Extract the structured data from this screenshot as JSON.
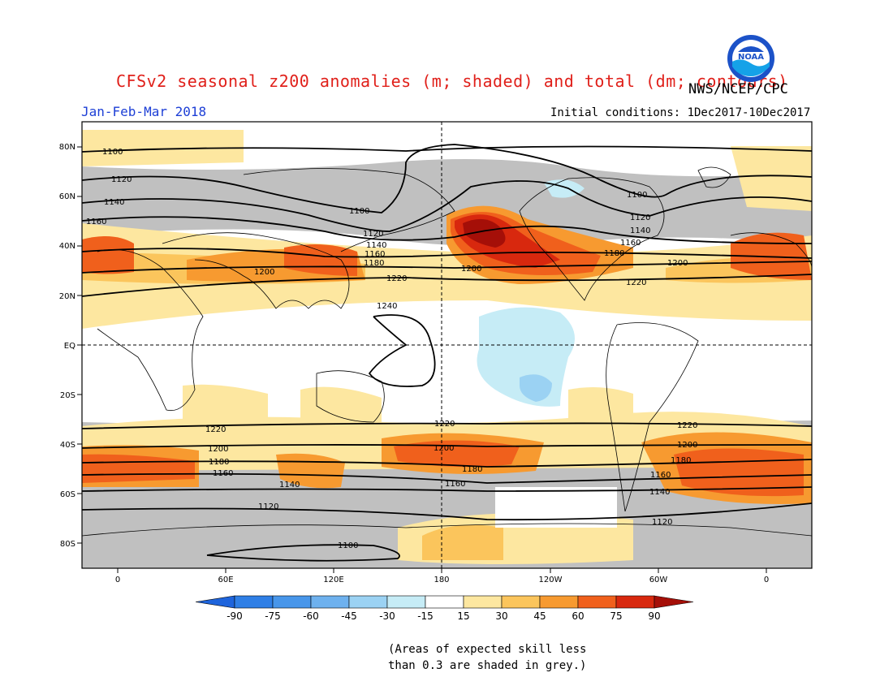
{
  "title": "CFSv2 seasonal z200 anomalies (m; shaded) and total (dm; contours)",
  "agency": "NWS/NCEP/CPC",
  "logo_text": "NOAA",
  "season": "Jan-Feb-Mar 2018",
  "initial_conditions": "Initial conditions: 1Dec2017-10Dec2017",
  "note_line1": "(Areas of expected skill less",
  "note_line2": "than 0.3 are shaded in grey.)",
  "lat_labels": [
    "80N",
    "60N",
    "40N",
    "20N",
    "EQ",
    "20S",
    "40S",
    "60S",
    "80S"
  ],
  "lon_labels": [
    "0",
    "60E",
    "120E",
    "180",
    "120W",
    "60W",
    "0"
  ],
  "colorbar": {
    "ticks": [
      "-90",
      "-75",
      "-60",
      "-45",
      "-30",
      "-15",
      "15",
      "30",
      "45",
      "60",
      "75",
      "90"
    ],
    "colors": [
      "#1e64dc",
      "#2f7fe6",
      "#4896ea",
      "#6eb1ee",
      "#9bd2f3",
      "#c6ecf6",
      "#ffffff",
      "#fde7a0",
      "#fbc55c",
      "#f79a30",
      "#f0601c",
      "#d8280e",
      "#a50f08"
    ]
  },
  "contour_labels": [
    "1100",
    "1120",
    "1140",
    "1160",
    "1180",
    "1200",
    "1220",
    "1240"
  ],
  "colors": {
    "title": "#e0201a",
    "season": "#1d3fd6",
    "grey": "#c0c0c0"
  }
}
